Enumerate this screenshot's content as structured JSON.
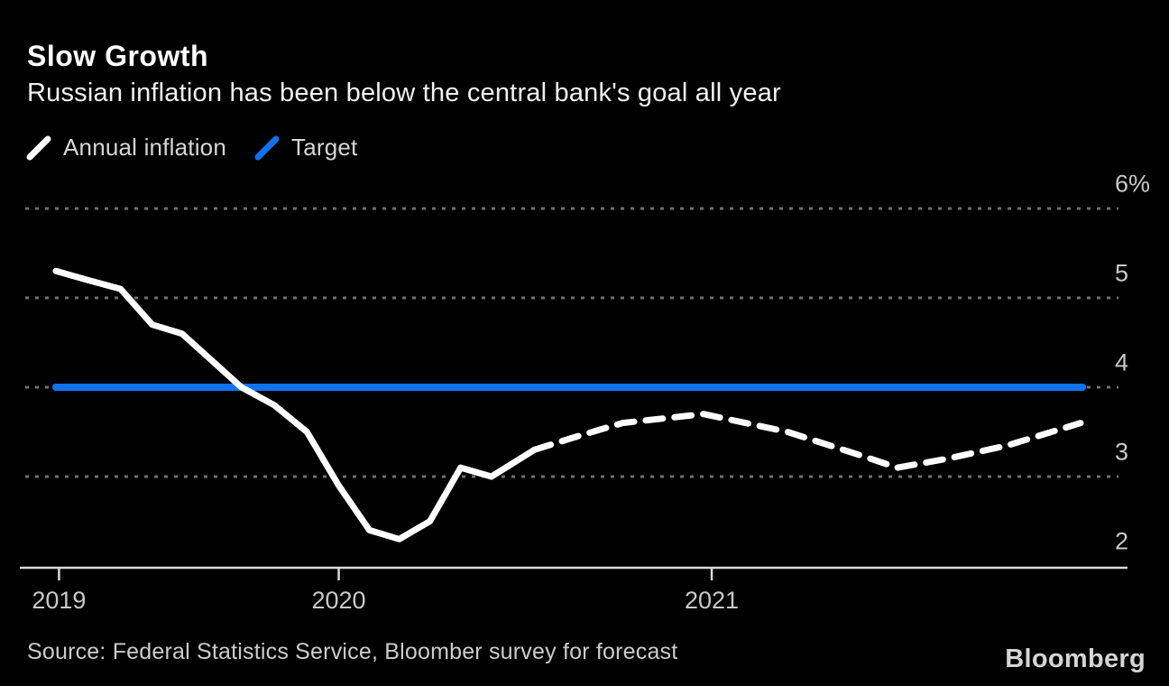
{
  "header": {
    "title": "Slow Growth",
    "subtitle": "Russian inflation has been below the central bank's goal all year"
  },
  "footer": {
    "source": "Source: Federal Statistics Service, Bloomber survey for forecast",
    "brand": "Bloomberg"
  },
  "palette": {
    "background": "#000000",
    "inflation_line": "#ffffff",
    "target_line": "#0f73ee",
    "grid_dots": "#6f6f6f",
    "axis_line": "#d9d9d9",
    "tick_label": "#c9c9c9"
  },
  "chart_data": {
    "type": "line",
    "title": "Slow Growth",
    "subtitle": "Russian inflation has been below the central bank's goal all year",
    "unit": "%",
    "ylim": [
      2,
      6
    ],
    "grid": "horizontal-dotted",
    "legend_position": "top-left",
    "y_ticks": [
      {
        "label": "6%",
        "value": 6
      },
      {
        "label": "5",
        "value": 5
      },
      {
        "label": "4",
        "value": 4
      },
      {
        "label": "3",
        "value": 3
      },
      {
        "label": "2",
        "value": 2
      }
    ],
    "x_ticks": [
      {
        "label": "2019",
        "f": 0.003
      },
      {
        "label": "2020",
        "f": 0.276
      },
      {
        "label": "2021",
        "f": 0.64
      }
    ],
    "series": [
      {
        "name": "Annual inflation",
        "color": "#ffffff",
        "style": "solid-then-dashed (dashed = forecast)",
        "points": [
          {
            "date": "Jan 2019",
            "value": 5.3,
            "f": 0.0,
            "forecast": false
          },
          {
            "date": "Feb 2019",
            "value": 5.2,
            "f": 0.031,
            "forecast": false
          },
          {
            "date": "Apr 2019",
            "value": 5.1,
            "f": 0.063,
            "forecast": false
          },
          {
            "date": "May 2019",
            "value": 4.7,
            "f": 0.094,
            "forecast": false
          },
          {
            "date": "Jun 2019",
            "value": 4.6,
            "f": 0.123,
            "forecast": false
          },
          {
            "date": "Jul 2019",
            "value": 4.3,
            "f": 0.152,
            "forecast": false
          },
          {
            "date": "Sep 2019",
            "value": 4.0,
            "f": 0.181,
            "forecast": false
          },
          {
            "date": "Oct 2019",
            "value": 3.8,
            "f": 0.213,
            "forecast": false
          },
          {
            "date": "Nov 2019",
            "value": 3.5,
            "f": 0.245,
            "forecast": false
          },
          {
            "date": "Jan 2020",
            "value": 2.9,
            "f": 0.276,
            "forecast": false
          },
          {
            "date": "Feb 2020",
            "value": 2.4,
            "f": 0.306,
            "forecast": false
          },
          {
            "date": "Mar 2020",
            "value": 2.3,
            "f": 0.335,
            "forecast": false
          },
          {
            "date": "Apr 2020",
            "value": 2.5,
            "f": 0.365,
            "forecast": false
          },
          {
            "date": "May 2020",
            "value": 3.1,
            "f": 0.395,
            "forecast": false
          },
          {
            "date": "Jun 2020",
            "value": 3.0,
            "f": 0.425,
            "forecast": false
          },
          {
            "date": "Aug 2020",
            "value": 3.3,
            "f": 0.467,
            "forecast": false
          },
          {
            "date": "Sep 2020",
            "value": 3.45,
            "f": 0.509,
            "forecast": true
          },
          {
            "date": "Oct 2020",
            "value": 3.6,
            "f": 0.553,
            "forecast": true
          },
          {
            "date": "Dec 2020",
            "value": 3.7,
            "f": 0.632,
            "forecast": true
          },
          {
            "date": "Mar 2021",
            "value": 3.5,
            "f": 0.714,
            "forecast": true
          },
          {
            "date": "May 2021",
            "value": 3.25,
            "f": 0.782,
            "forecast": true
          },
          {
            "date": "Jul 2021",
            "value": 3.1,
            "f": 0.821,
            "forecast": true
          },
          {
            "date": "Sep 2021",
            "value": 3.2,
            "f": 0.87,
            "forecast": true
          },
          {
            "date": "Oct 2021",
            "value": 3.35,
            "f": 0.929,
            "forecast": true
          },
          {
            "date": "Dec 2021",
            "value": 3.6,
            "f": 1.0,
            "forecast": true
          }
        ]
      },
      {
        "name": "Target",
        "color": "#0f73ee",
        "style": "solid constant line",
        "value": 4.0,
        "span_f": [
          0,
          1.002
        ]
      }
    ]
  }
}
